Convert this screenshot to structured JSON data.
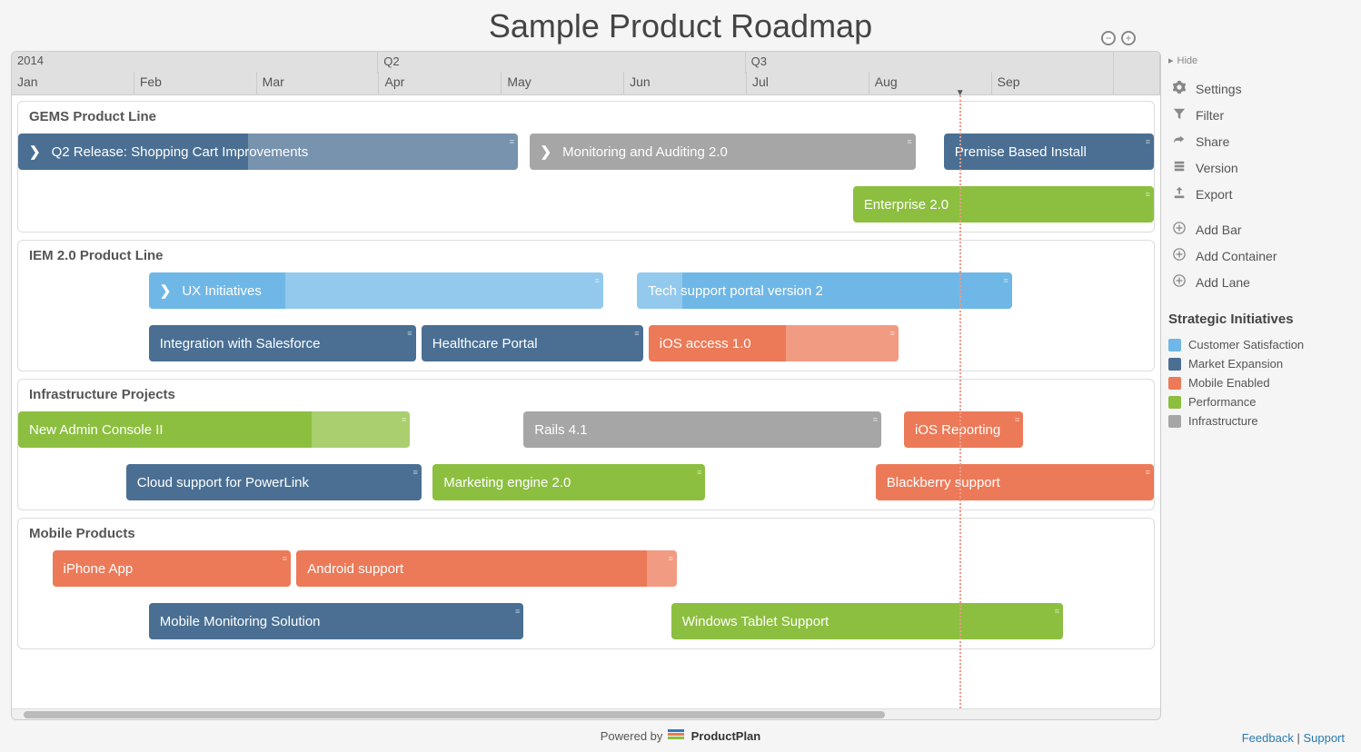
{
  "title": "Sample Product Roadmap",
  "zoom": {
    "out_label": "−",
    "in_label": "+"
  },
  "footer": {
    "powered_by": "Powered by",
    "brand": "ProductPlan",
    "feedback": "Feedback",
    "support": "Support"
  },
  "timeline": {
    "year": "2014",
    "quarters": [
      {
        "label": "",
        "width_pct": 31.9
      },
      {
        "label": "Q2",
        "width_pct": 32.0
      },
      {
        "label": "Q3",
        "width_pct": 32.1
      },
      {
        "label": "",
        "width_pct": 4.0
      }
    ],
    "months": [
      "Jan",
      "Feb",
      "Mar",
      "Apr",
      "May",
      "Jun",
      "Jul",
      "Aug",
      "Sep"
    ],
    "month_extra_width_pct": 4.0,
    "today_marker_left_pct": 82.5
  },
  "colors": {
    "customer_satisfaction": "#6fb7e6",
    "market_expansion": "#4a6f93",
    "mobile_enabled": "#ec7a58",
    "performance": "#8cbf3f",
    "infrastructure": "#a6a6a6",
    "lane_bg": "#ffffff",
    "page_bg": "#f5f5f5",
    "header_bg": "#e0e0e0"
  },
  "lanes": [
    {
      "name": "GEMS Product Line",
      "rows": [
        [
          {
            "label": "Q2 Release: Shopping Cart Improvements",
            "color": "market_expansion",
            "left_pct": 0,
            "width_pct": 44.0,
            "chevron": true,
            "overlay": {
              "left_pct": 46,
              "width_pct": 54
            }
          },
          {
            "label": "Monitoring and Auditing 2.0",
            "color": "infrastructure",
            "left_pct": 45.0,
            "width_pct": 34.0,
            "chevron": true
          },
          {
            "label": "Premise Based Install",
            "color": "market_expansion",
            "left_pct": 81.5,
            "width_pct": 18.5
          }
        ],
        [
          {
            "label": "Enterprise 2.0",
            "color": "performance",
            "left_pct": 73.5,
            "width_pct": 26.5
          }
        ]
      ]
    },
    {
      "name": "IEM 2.0 Product Line",
      "rows": [
        [
          {
            "label": "UX Initiatives",
            "color": "customer_satisfaction",
            "left_pct": 11.5,
            "width_pct": 40.0,
            "chevron": true,
            "overlay": {
              "left_pct": 30,
              "width_pct": 70
            }
          },
          {
            "label": "Tech support portal version 2",
            "color": "customer_satisfaction",
            "left_pct": 54.5,
            "width_pct": 33.0,
            "overlay": {
              "left_pct": 0,
              "width_pct": 12
            }
          }
        ],
        [
          {
            "label": "Integration with Salesforce",
            "color": "market_expansion",
            "left_pct": 11.5,
            "width_pct": 23.5
          },
          {
            "label": "Healthcare Portal",
            "color": "market_expansion",
            "left_pct": 35.5,
            "width_pct": 19.5
          },
          {
            "label": "iOS access 1.0",
            "color": "mobile_enabled",
            "left_pct": 55.5,
            "width_pct": 22.0,
            "overlay": {
              "left_pct": 55,
              "width_pct": 45
            }
          }
        ]
      ]
    },
    {
      "name": "Infrastructure Projects",
      "rows": [
        [
          {
            "label": "New Admin Console II",
            "color": "performance",
            "left_pct": 0,
            "width_pct": 34.5,
            "overlay": {
              "left_pct": 75,
              "width_pct": 25
            }
          },
          {
            "label": "Rails 4.1",
            "color": "infrastructure",
            "left_pct": 44.5,
            "width_pct": 31.5
          },
          {
            "label": "iOS Reporting",
            "color": "mobile_enabled",
            "left_pct": 78.0,
            "width_pct": 10.5
          }
        ],
        [
          {
            "label": "Cloud support for PowerLink",
            "color": "market_expansion",
            "left_pct": 9.5,
            "width_pct": 26.0
          },
          {
            "label": "Marketing engine 2.0",
            "color": "performance",
            "left_pct": 36.5,
            "width_pct": 24.0
          },
          {
            "label": "Blackberry support",
            "color": "mobile_enabled",
            "left_pct": 75.5,
            "width_pct": 24.5
          }
        ]
      ]
    },
    {
      "name": "Mobile Products",
      "rows": [
        [
          {
            "label": "iPhone App",
            "color": "mobile_enabled",
            "left_pct": 3.0,
            "width_pct": 21.0
          },
          {
            "label": "Android support",
            "color": "mobile_enabled",
            "left_pct": 24.5,
            "width_pct": 33.5,
            "overlay": {
              "left_pct": 92,
              "width_pct": 8
            }
          }
        ],
        [
          {
            "label": "Mobile Monitoring Solution",
            "color": "market_expansion",
            "left_pct": 11.5,
            "width_pct": 33.0
          },
          {
            "label": "Windows Tablet Support",
            "color": "performance",
            "left_pct": 57.5,
            "width_pct": 34.5
          }
        ]
      ]
    }
  ],
  "scrollbar": {
    "thumb_left_pct": 1,
    "thumb_width_pct": 75
  },
  "sidebar": {
    "hide_label": "Hide",
    "group1": [
      {
        "icon": "gear",
        "label": "Settings"
      },
      {
        "icon": "filter",
        "label": "Filter"
      },
      {
        "icon": "share",
        "label": "Share"
      },
      {
        "icon": "version",
        "label": "Version"
      },
      {
        "icon": "export",
        "label": "Export"
      }
    ],
    "group2": [
      {
        "icon": "plus",
        "label": "Add Bar"
      },
      {
        "icon": "plus",
        "label": "Add Container"
      },
      {
        "icon": "plus",
        "label": "Add Lane"
      }
    ],
    "legend_title": "Strategic Initiatives",
    "legend": [
      {
        "color": "customer_satisfaction",
        "label": "Customer Satisfaction"
      },
      {
        "color": "market_expansion",
        "label": "Market Expansion"
      },
      {
        "color": "mobile_enabled",
        "label": "Mobile Enabled"
      },
      {
        "color": "performance",
        "label": "Performance"
      },
      {
        "color": "infrastructure",
        "label": "Infrastructure"
      }
    ]
  }
}
